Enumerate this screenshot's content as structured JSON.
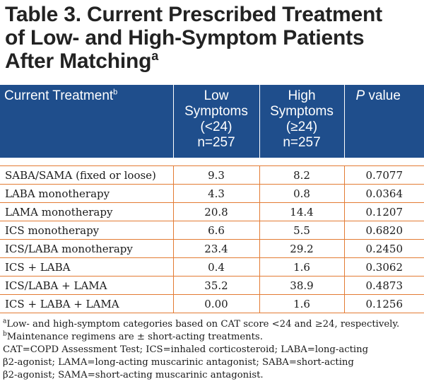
{
  "title": {
    "line1": "Table 3. Current Prescribed Treatment",
    "line2": "of Low- and High-Symptom Patients",
    "line3": "After Matching",
    "sup": "a"
  },
  "header": {
    "col1": "Current Treatment",
    "col1_sup": "b",
    "col2": [
      "Low",
      "Symptoms",
      "(<24)",
      "n=257"
    ],
    "col3": [
      "High",
      "Symptoms",
      "(≥24)",
      "n=257"
    ],
    "col4_italic": "P",
    "col4_rest": " value"
  },
  "rows": [
    {
      "treatment": "SABA/SAMA (fixed or loose)",
      "low": "9.3",
      "high": "8.2",
      "p": "0.7077"
    },
    {
      "treatment": "LABA monotherapy",
      "low": "4.3",
      "high": "0.8",
      "p": "0.0364"
    },
    {
      "treatment": "LAMA monotherapy",
      "low": "20.8",
      "high": "14.4",
      "p": "0.1207"
    },
    {
      "treatment": "ICS monotherapy",
      "low": "6.6",
      "high": "5.5",
      "p": "0.6820"
    },
    {
      "treatment": "ICS/LABA monotherapy",
      "low": "23.4",
      "high": "29.2",
      "p": "0.2450"
    },
    {
      "treatment": "ICS + LABA",
      "low": "0.4",
      "high": "1.6",
      "p": "0.3062"
    },
    {
      "treatment": "ICS/LABA + LAMA",
      "low": "35.2",
      "high": "38.9",
      "p": "0.4873"
    },
    {
      "treatment": "ICS + LABA + LAMA",
      "low": "0.00",
      "high": "1.6",
      "p": "0.1256"
    }
  ],
  "footnotes": {
    "a_sup": "a",
    "a_text": "Low- and high-symptom categories based on CAT score <24 and ≥24, respectively.",
    "b_sup": "b",
    "b_text": "Maintenance regimens are ± short-acting treatments.",
    "abbrev_lines": [
      "CAT=COPD Assessment Test; ICS=inhaled corticosteroid; LABA=long-acting",
      "β2-agonist; LAMA=long-acting muscarinic antagonist; SABA=short-acting",
      "β2-agonist; SAMA=short-acting muscarinic antagonist."
    ]
  },
  "colors": {
    "header_bg": "#1f4e8c",
    "rule": "#e37b33",
    "title": "#222222"
  }
}
